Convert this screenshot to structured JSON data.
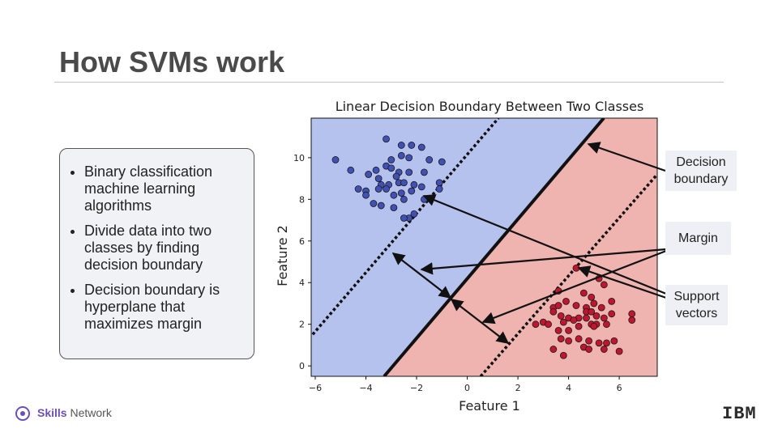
{
  "header": {
    "title": "How SVMs work"
  },
  "bullets": [
    "Binary classification machine learning algorithms",
    "Divide data into two classes by finding decision boundary",
    "Decision boundary is hyperplane that maximizes margin"
  ],
  "footer": {
    "brand_bold": "Skills",
    "brand": "Network",
    "logo": "IBM"
  },
  "chart_data": {
    "type": "scatter",
    "title": "Linear Decision Boundary Between Two Classes",
    "x_label": "Feature 1",
    "y_label": "Feature 2",
    "xlim": [
      -6.16,
      7.5
    ],
    "ylim": [
      -0.5,
      11.9
    ],
    "xticks": [
      {
        "value": -6,
        "label": "−6"
      },
      {
        "value": -4,
        "label": "−4"
      },
      {
        "value": -2,
        "label": "−2"
      },
      0,
      2,
      4,
      6
    ],
    "yticks": [
      0,
      2,
      4,
      6,
      8,
      10
    ],
    "region_colors": [
      "#b6c2ee",
      "#efb3b0"
    ],
    "lines": [
      {
        "x": [
          -3.28,
          5.39
        ],
        "y": [
          -0.5,
          11.9
        ],
        "style": "solid"
      },
      {
        "x": [
          -6.1,
          1.23
        ],
        "y": [
          1.51,
          11.9
        ],
        "style": "dotted"
      },
      {
        "x": [
          0.53,
          7.5
        ],
        "y": [
          -0.5,
          9.2
        ],
        "style": "dotted"
      }
    ],
    "series": [
      {
        "color": "#4050b5",
        "x": [
          -5.2,
          -3.2,
          -2.6,
          -2.2,
          -1.8,
          -2.6,
          -2.3,
          -3.0,
          -1.5,
          -1.0,
          -3.2,
          -3.0,
          -3.6,
          -2.7,
          -2.3,
          -1.7,
          -3.9,
          -4.6,
          -3.5,
          -2.8,
          -3.4,
          -3.1,
          -2.7,
          -2.5,
          -2.1,
          -1.1,
          -1.1,
          -1.8,
          -4.3,
          -4.0,
          -3.5,
          -3.2,
          -2.9,
          -2.6,
          -2.2,
          -4.0,
          -2.5,
          -3.7,
          -2.9,
          -3.4,
          -2.1,
          -2.3,
          -2.5,
          -1.7
        ],
        "y": [
          9.9,
          10.9,
          10.6,
          10.6,
          10.5,
          10.1,
          10.0,
          9.9,
          9.9,
          9.8,
          9.6,
          9.5,
          9.4,
          9.3,
          9.3,
          9.3,
          9.2,
          9.4,
          9.0,
          9.1,
          8.7,
          8.7,
          8.8,
          8.8,
          8.7,
          8.8,
          8.5,
          8.6,
          8.5,
          8.4,
          8.5,
          8.5,
          8.2,
          8.3,
          8.4,
          8.2,
          8.0,
          7.8,
          7.6,
          7.7,
          7.3,
          7.1,
          7.1,
          8.0
        ]
      },
      {
        "color": "#c0152f",
        "x": [
          4.3,
          5.2,
          5.4,
          3.6,
          4.6,
          4.9,
          3.9,
          5.7,
          3.4,
          3.6,
          4.3,
          4.7,
          5.0,
          5.3,
          4.7,
          4.9,
          5.1,
          3.4,
          3.7,
          4.0,
          4.4,
          4.7,
          5.4,
          5.7,
          6.5,
          2.7,
          3.0,
          3.2,
          3.8,
          4.2,
          4.9,
          5.1,
          5.5,
          6.5,
          3.6,
          4.0,
          4.4,
          5.0,
          3.7,
          4.0,
          4.4,
          4.8,
          5.2,
          5.5,
          5.8,
          3.4,
          3.8,
          4.6,
          4.8,
          5.4,
          6.0
        ],
        "y": [
          4.7,
          4.2,
          3.9,
          3.6,
          3.5,
          3.3,
          3.1,
          3.1,
          2.8,
          2.9,
          2.9,
          2.8,
          3.0,
          2.8,
          2.6,
          2.6,
          2.4,
          2.6,
          2.4,
          2.3,
          2.3,
          2.3,
          2.3,
          2.5,
          2.5,
          2.0,
          2.1,
          2.0,
          2.1,
          2.2,
          2.0,
          2.0,
          2.0,
          2.2,
          1.7,
          1.7,
          1.9,
          1.9,
          1.3,
          1.2,
          1.3,
          1.2,
          1.1,
          1.1,
          1.2,
          0.8,
          0.5,
          0.9,
          0.8,
          0.8,
          0.7
        ]
      }
    ],
    "annotations": [
      "Decision boundary",
      "Margin",
      "Support vectors"
    ]
  }
}
